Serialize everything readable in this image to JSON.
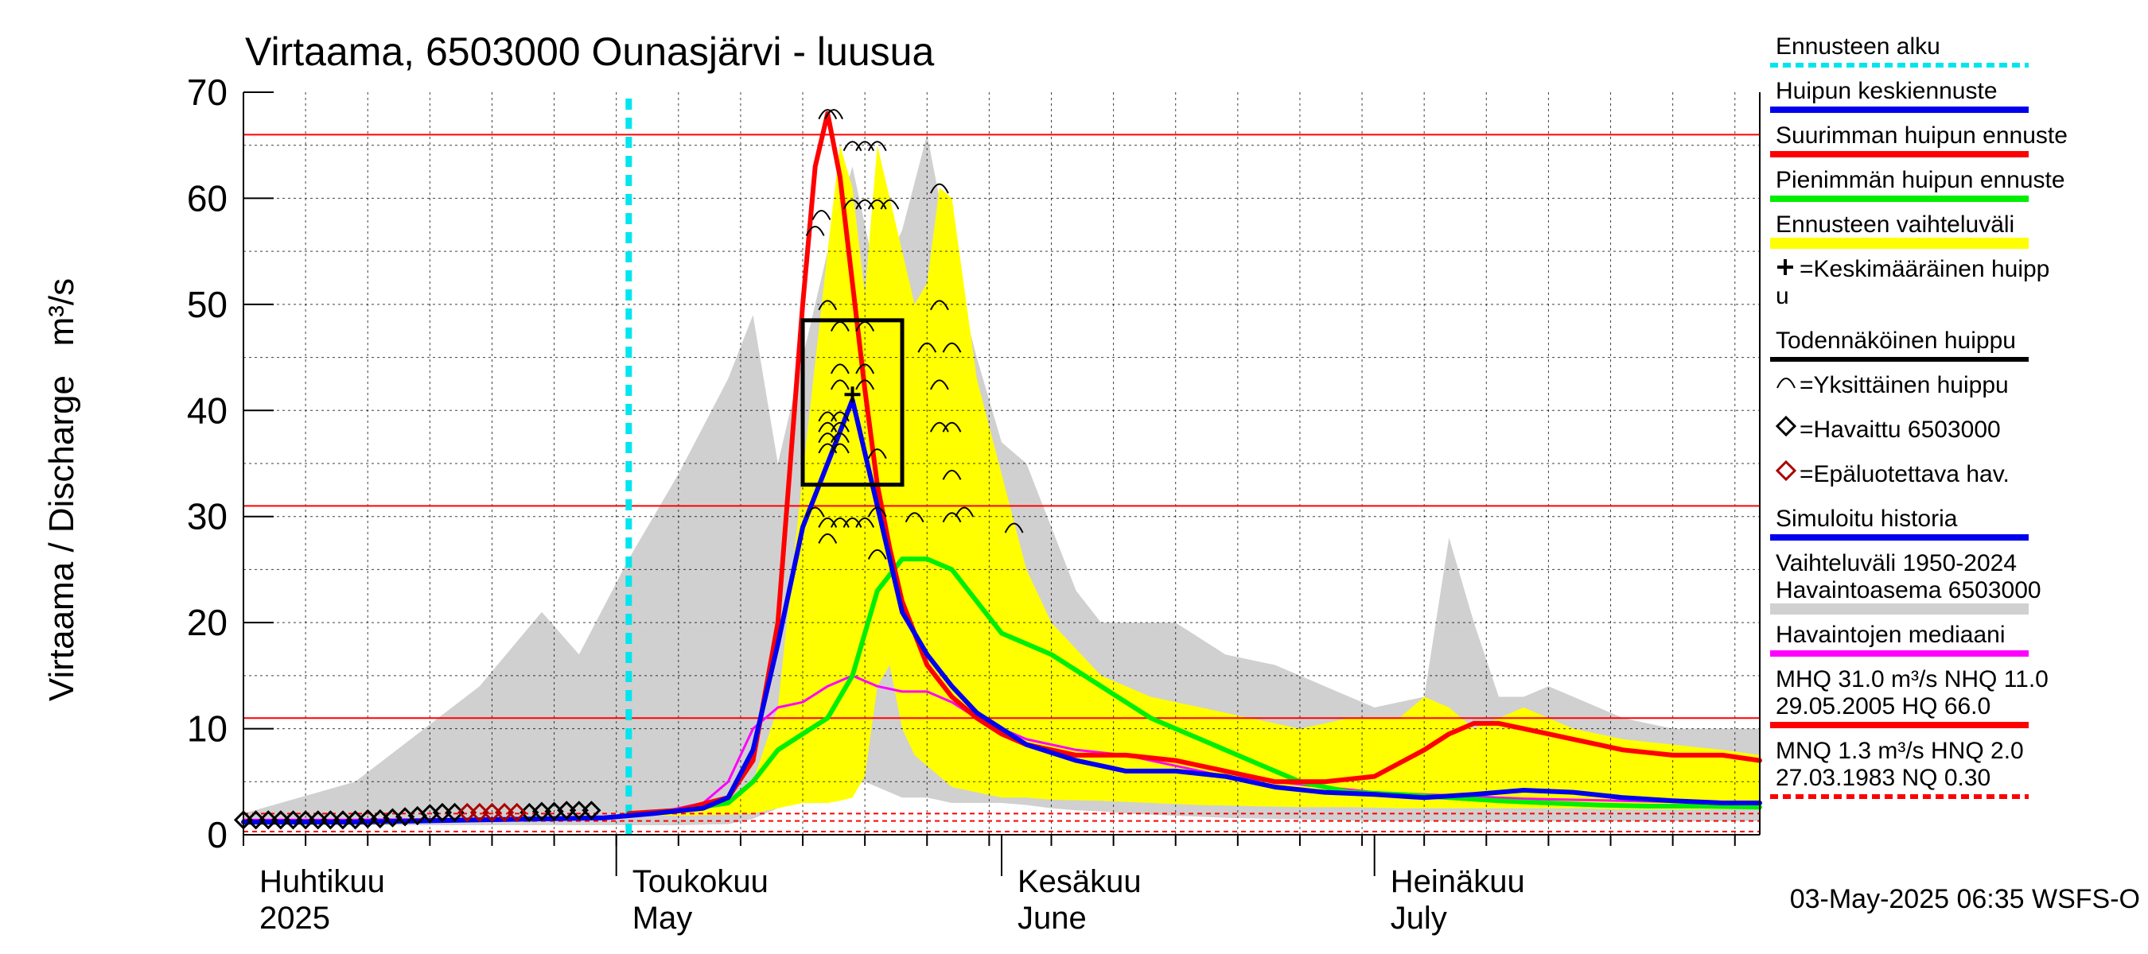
{
  "chart_data": {
    "type": "line",
    "title": "Virtaama, 6503000 Ounasjärvi - luusua",
    "ylabel": "Virtaama / Discharge   m³/s",
    "ylim": [
      0,
      70
    ],
    "yticks": [
      0,
      10,
      20,
      30,
      40,
      50,
      60,
      70
    ],
    "grid": true,
    "x_domain_days": [
      1,
      123
    ],
    "x_note": "x values are day numbers of year 2025 counted from 1 April (1 = 1 Apr, 31 = 1 May, 62 = 1 Jun, 92 = 1 Jul)",
    "month_labels": [
      {
        "day": 1,
        "fi": "Huhtikuu",
        "en": "2025"
      },
      {
        "day": 31,
        "fi": "Toukokuu",
        "en": "May"
      },
      {
        "day": 62,
        "fi": "Kesäkuu",
        "en": "June"
      },
      {
        "day": 92,
        "fi": "Heinäkuu",
        "en": "July"
      }
    ],
    "forecast_start_day": 32,
    "threshold_lines": [
      {
        "value": 66.0,
        "color": "#ff0000",
        "style": "solid"
      },
      {
        "value": 31.0,
        "color": "#ff0000",
        "style": "solid"
      },
      {
        "value": 11.0,
        "color": "#ff0000",
        "style": "solid"
      },
      {
        "value": 2.0,
        "color": "#ff0000",
        "style": "dashed"
      },
      {
        "value": 1.3,
        "color": "#ff0000",
        "style": "dashed"
      },
      {
        "value": 0.3,
        "color": "#ff0000",
        "style": "dashed"
      }
    ],
    "history_range": {
      "color": "#d0d0d0",
      "x": [
        1,
        10,
        20,
        25,
        28,
        32,
        36,
        40,
        42,
        44,
        48,
        50,
        52,
        54,
        56,
        58,
        60,
        62,
        64,
        66,
        68,
        70,
        72,
        76,
        80,
        84,
        88,
        92,
        96,
        98,
        100,
        102,
        104,
        106,
        108,
        112,
        116,
        120,
        123
      ],
      "upper": [
        2.0,
        5.0,
        14.0,
        21.0,
        17.0,
        26.0,
        34.0,
        43.0,
        49.0,
        35.0,
        55.0,
        63.0,
        52.0,
        57.0,
        66.0,
        54.0,
        45.0,
        37.0,
        35.0,
        29.0,
        23.0,
        20.0,
        20.0,
        20.0,
        17.0,
        16.0,
        14.0,
        12.0,
        13.0,
        28.0,
        20.0,
        13.0,
        13.0,
        14.0,
        13.0,
        11.0,
        10.0,
        10.0,
        10.0
      ],
      "lower": [
        0.9,
        0.9,
        0.9,
        0.9,
        0.9,
        0.9,
        0.9,
        1.0,
        1.5,
        2.5,
        4.0,
        5.5,
        4.5,
        3.5,
        3.5,
        3.0,
        3.0,
        3.0,
        2.8,
        2.5,
        2.3,
        2.2,
        2.0,
        1.8,
        1.6,
        1.5,
        1.4,
        1.3,
        1.3,
        1.3,
        1.3,
        1.3,
        1.3,
        1.3,
        1.3,
        1.3,
        1.3,
        1.3,
        1.3
      ]
    },
    "forecast_range": {
      "color": "#ffff00",
      "x": [
        32,
        36,
        40,
        42,
        44,
        46,
        48,
        49,
        50,
        51,
        52,
        53,
        54,
        55,
        56,
        57,
        58,
        60,
        62,
        64,
        66,
        70,
        74,
        78,
        82,
        86,
        90,
        94,
        96,
        98,
        100,
        104,
        108,
        112,
        116,
        120,
        123
      ],
      "upper": [
        2.0,
        2.2,
        3.0,
        5.0,
        12.0,
        34.0,
        55.0,
        65.0,
        61.0,
        51.0,
        65.0,
        60.0,
        55.0,
        50.0,
        52.0,
        61.0,
        60.0,
        43.0,
        34.0,
        25.0,
        20.0,
        15.0,
        13.0,
        12.0,
        11.0,
        10.0,
        11.0,
        11.0,
        13.0,
        12.0,
        10.0,
        12.0,
        10.0,
        9.0,
        8.5,
        8.0,
        7.5
      ],
      "lower": [
        1.8,
        1.8,
        1.9,
        2.0,
        2.5,
        3.0,
        3.0,
        3.2,
        3.5,
        5.5,
        14.0,
        16.0,
        10.0,
        7.5,
        6.5,
        5.5,
        4.5,
        4.0,
        3.5,
        3.5,
        3.3,
        3.2,
        3.0,
        2.8,
        2.7,
        2.6,
        2.6,
        2.5,
        2.5,
        2.5,
        2.5,
        2.5,
        2.5,
        2.4,
        2.4,
        2.4,
        2.4
      ]
    },
    "series": [
      {
        "name": "Havaintojen mediaani",
        "color": "#ff00ff",
        "width": 3,
        "x": [
          1,
          10,
          20,
          30,
          34,
          38,
          40,
          42,
          44,
          46,
          48,
          50,
          52,
          54,
          56,
          58,
          60,
          62,
          64,
          68,
          72,
          76,
          80,
          84,
          88,
          92,
          96,
          100,
          104,
          108,
          112,
          116,
          120,
          123
        ],
        "y": [
          1.4,
          1.4,
          1.5,
          1.7,
          2.0,
          3.0,
          5.0,
          10.0,
          12.0,
          12.5,
          14.0,
          15.0,
          14.0,
          13.5,
          13.5,
          12.5,
          11.0,
          10.0,
          9.0,
          8.0,
          7.5,
          6.5,
          5.5,
          5.0,
          4.5,
          4.0,
          3.8,
          3.6,
          3.4,
          3.3,
          3.2,
          3.1,
          3.0,
          3.0
        ]
      },
      {
        "name": "Pienimmän huipun ennuste",
        "color": "#00ee00",
        "width": 6,
        "x": [
          32,
          36,
          40,
          42,
          44,
          46,
          48,
          50,
          52,
          54,
          56,
          58,
          60,
          62,
          66,
          70,
          74,
          78,
          82,
          86,
          90,
          94,
          98,
          102,
          106,
          110,
          114,
          118,
          123
        ],
        "y": [
          2.0,
          2.3,
          3.0,
          5.0,
          8.0,
          9.5,
          11.0,
          15.0,
          23.0,
          26.0,
          26.0,
          25.0,
          22.0,
          19.0,
          17.0,
          14.0,
          11.0,
          9.0,
          7.0,
          5.0,
          4.0,
          3.8,
          3.5,
          3.2,
          3.0,
          2.8,
          2.7,
          2.7,
          2.6
        ]
      },
      {
        "name": "Suurimman huipun ennuste",
        "color": "#ff0000",
        "width": 6,
        "x": [
          32,
          36,
          40,
          42,
          44,
          45,
          46,
          47,
          48,
          49,
          50,
          51,
          52,
          53,
          54,
          55,
          56,
          58,
          60,
          62,
          64,
          68,
          72,
          76,
          80,
          84,
          88,
          92,
          96,
          98,
          100,
          102,
          104,
          106,
          108,
          110,
          112,
          116,
          120,
          123
        ],
        "y": [
          2.0,
          2.3,
          3.5,
          7.0,
          20.0,
          35.0,
          50.0,
          63.0,
          68.0,
          62.0,
          52.0,
          42.0,
          33.0,
          27.0,
          22.0,
          19.0,
          16.0,
          13.0,
          11.0,
          9.5,
          8.5,
          7.5,
          7.5,
          7.0,
          6.0,
          5.0,
          5.0,
          5.5,
          8.0,
          9.5,
          10.5,
          10.5,
          10.0,
          9.5,
          9.0,
          8.5,
          8.0,
          7.5,
          7.5,
          7.0
        ]
      },
      {
        "name": "Huipun keskiennuste",
        "color": "#0000ee",
        "width": 6,
        "x": [
          1,
          10,
          20,
          30,
          34,
          38,
          40,
          42,
          44,
          46,
          48,
          50,
          52,
          54,
          56,
          58,
          60,
          62,
          64,
          68,
          72,
          76,
          80,
          84,
          88,
          92,
          96,
          100,
          104,
          108,
          112,
          116,
          120,
          123
        ],
        "y": [
          1.2,
          1.2,
          1.4,
          1.6,
          2.0,
          2.5,
          3.5,
          8.0,
          18.0,
          29.0,
          35.0,
          41.0,
          31.0,
          21.0,
          17.0,
          14.0,
          11.5,
          10.0,
          8.5,
          7.0,
          6.0,
          6.0,
          5.5,
          4.5,
          4.0,
          3.8,
          3.5,
          3.8,
          4.2,
          4.0,
          3.5,
          3.2,
          3.0,
          3.0
        ]
      }
    ],
    "observed_points": {
      "name": "Havaittu 6503000",
      "color": "#000000",
      "x": [
        1,
        2,
        3,
        4,
        5,
        6,
        7,
        8,
        9,
        10,
        11,
        12,
        13,
        14,
        15,
        16,
        17,
        18,
        24,
        25,
        26,
        27,
        28,
        29
      ],
      "y": [
        1.4,
        1.4,
        1.4,
        1.4,
        1.4,
        1.4,
        1.4,
        1.4,
        1.4,
        1.4,
        1.5,
        1.5,
        1.6,
        1.7,
        1.8,
        2.0,
        2.1,
        2.1,
        2.1,
        2.2,
        2.2,
        2.3,
        2.3,
        2.3
      ]
    },
    "unreliable_points": {
      "name": "Epäluotettava hav.",
      "color": "#aa0000",
      "x": [
        19,
        20,
        21,
        22,
        23
      ],
      "y": [
        2.1,
        2.1,
        2.1,
        2.1,
        2.1
      ]
    },
    "probable_peak_box": {
      "x0": 46,
      "x1": 54,
      "y0": 33.0,
      "y1": 48.5
    },
    "mean_peak": {
      "x": 50,
      "y": 41.5
    },
    "individual_peaks": [
      [
        48,
        68.0
      ],
      [
        48.5,
        68.0
      ],
      [
        50,
        65.0
      ],
      [
        51,
        65.0
      ],
      [
        52,
        65.0
      ],
      [
        50,
        59.5
      ],
      [
        51,
        59.5
      ],
      [
        52,
        59.5
      ],
      [
        53,
        59.5
      ],
      [
        57,
        61.0
      ],
      [
        47,
        57.0
      ],
      [
        47.5,
        58.5
      ],
      [
        48,
        50.0
      ],
      [
        57,
        50.0
      ],
      [
        49,
        48.0
      ],
      [
        51,
        48.0
      ],
      [
        56,
        46.0
      ],
      [
        58,
        46.0
      ],
      [
        49,
        44.0
      ],
      [
        51,
        44.0
      ],
      [
        49,
        42.5
      ],
      [
        51,
        42.5
      ],
      [
        57,
        42.5
      ],
      [
        48,
        39.5
      ],
      [
        49,
        39.5
      ],
      [
        48,
        38.5
      ],
      [
        49,
        38.5
      ],
      [
        48,
        37.5
      ],
      [
        49,
        37.5
      ],
      [
        48,
        36.5
      ],
      [
        49,
        36.5
      ],
      [
        52,
        36.0
      ],
      [
        57,
        38.5
      ],
      [
        58,
        38.5
      ],
      [
        47,
        30.5
      ],
      [
        48,
        29.5
      ],
      [
        49,
        29.5
      ],
      [
        50,
        29.5
      ],
      [
        52,
        30.5
      ],
      [
        51,
        29.5
      ],
      [
        55,
        30.0
      ],
      [
        58,
        30.0
      ],
      [
        59,
        30.5
      ],
      [
        58,
        34.0
      ],
      [
        63,
        29.0
      ],
      [
        48,
        28.0
      ],
      [
        52,
        26.5
      ]
    ],
    "legend": [
      {
        "label": "Ennusteen alku",
        "swatch": "dashed-line",
        "color": "#00e5ee"
      },
      {
        "label": "Huipun keskiennuste",
        "swatch": "line",
        "color": "#0000ee"
      },
      {
        "label": "Suurimman huipun ennuste",
        "swatch": "line",
        "color": "#ff0000"
      },
      {
        "label": "Pienimmän huipun ennuste",
        "swatch": "line",
        "color": "#00ee00"
      },
      {
        "label": "Ennusteen vaihteluväli",
        "swatch": "band",
        "color": "#ffff00"
      },
      {
        "label": "=Keskimääräinen huipp",
        "label2": "u",
        "swatch": "plus-symbol",
        "color": "#000000"
      },
      {
        "label": "Todennäköinen huippu",
        "swatch": "line",
        "color": "#000000"
      },
      {
        "label": "=Yksittäinen huippu",
        "swatch": "arc-symbol",
        "color": "#000000"
      },
      {
        "label": "=Havaittu 6503000",
        "swatch": "diamond-symbol",
        "color": "#000000"
      },
      {
        "label": "=Epäluotettava hav.",
        "swatch": "diamond-symbol",
        "color": "#aa0000"
      },
      {
        "label": "Simuloitu historia",
        "swatch": "line",
        "color": "#0000ee"
      },
      {
        "label": "Vaihteluväli 1950-2024",
        "label2": " Havaintoasema 6503000",
        "swatch": "band",
        "color": "#d0d0d0"
      },
      {
        "label": "Havaintojen mediaani",
        "swatch": "line",
        "color": "#ff00ff"
      },
      {
        "label": "MHQ 31.0 m³/s NHQ 11.0",
        "label2": "29.05.2005 HQ 66.0",
        "swatch": "line",
        "color": "#ff0000"
      },
      {
        "label": "MNQ  1.3 m³/s HNQ  2.0",
        "label2": "27.03.1983 NQ 0.30",
        "swatch": "dashed-line",
        "color": "#ff0000"
      }
    ],
    "timestamp": "03-May-2025 06:35 WSFS-O"
  }
}
